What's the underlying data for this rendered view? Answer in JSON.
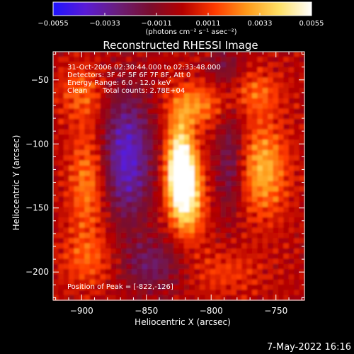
{
  "colorbar": {
    "ticks": [
      "-0.0055",
      "-0.0033",
      "-0.0011",
      "0.0011",
      "0.0033",
      "0.0055"
    ],
    "units": "(photons cm⁻² s⁻¹ asec⁻²)",
    "colors": [
      "#1f14ff",
      "#5a1bd6",
      "#6a1e7a",
      "#7a0d2e",
      "#b40000",
      "#ff3a00",
      "#ff9a1a",
      "#ffe066",
      "#ffffff"
    ]
  },
  "chart_data": {
    "type": "heatmap",
    "title": "Reconstructed RHESSI Image",
    "xlabel": "Heliocentric X (arcsec)",
    "ylabel": "Heliocentric Y (arcsec)",
    "xlim": [
      -922,
      -728
    ],
    "ylim": [
      -222,
      -28
    ],
    "xticks": [
      -900,
      -850,
      -800,
      -750
    ],
    "yticks": [
      -50,
      -100,
      -150,
      -200
    ],
    "xtick_labels": [
      "−900",
      "−850",
      "−800",
      "−750"
    ],
    "ytick_labels": [
      "−50",
      "−100",
      "−150",
      "−200"
    ],
    "value_range": [
      -0.0055,
      0.0055
    ],
    "sources": [
      {
        "x": -822,
        "y": -126,
        "sx": 8,
        "sy": 20,
        "amp": 0.0055
      },
      {
        "x": -825,
        "y": -110,
        "sx": 7,
        "sy": 25,
        "amp": 0.003
      },
      {
        "x": -817,
        "y": -150,
        "sx": 9,
        "sy": 20,
        "amp": 0.0025
      },
      {
        "x": -812,
        "y": -70,
        "sx": 14,
        "sy": 12,
        "amp": 0.0025
      },
      {
        "x": -760,
        "y": -120,
        "sx": 13,
        "sy": 25,
        "amp": 0.0032
      },
      {
        "x": -765,
        "y": -60,
        "sx": 13,
        "sy": 12,
        "amp": 0.0018
      },
      {
        "x": -895,
        "y": -130,
        "sx": 10,
        "sy": 30,
        "amp": 0.0025
      },
      {
        "x": -900,
        "y": -60,
        "sx": 12,
        "sy": 15,
        "amp": 0.0018
      },
      {
        "x": -895,
        "y": -190,
        "sx": 15,
        "sy": 15,
        "amp": 0.0016
      },
      {
        "x": -790,
        "y": -200,
        "sx": 20,
        "sy": 12,
        "amp": 0.0012
      },
      {
        "x": -865,
        "y": -110,
        "sx": 14,
        "sy": 35,
        "amp": -0.004
      },
      {
        "x": -785,
        "y": -115,
        "sx": 8,
        "sy": 30,
        "amp": -0.0022
      },
      {
        "x": -845,
        "y": -195,
        "sx": 18,
        "sy": 15,
        "amp": -0.0022
      },
      {
        "x": -790,
        "y": -40,
        "sx": 10,
        "sy": 10,
        "amp": -0.0015
      }
    ],
    "annotations": {
      "time": "31-Oct-2006 02:30:44.000 to 02:33:48.000",
      "detectors": "Detectors: 3F 4F 5F 6F 7F 8F, Att 0",
      "energy": "Energy Range: 6.0 - 12.0 keV",
      "clean_label": "Clean",
      "counts": "Total counts: 2.78E+04",
      "peak": "Position of Peak = [-822,-126]"
    }
  },
  "footer": {
    "date": "7-May-2022 16:16"
  }
}
